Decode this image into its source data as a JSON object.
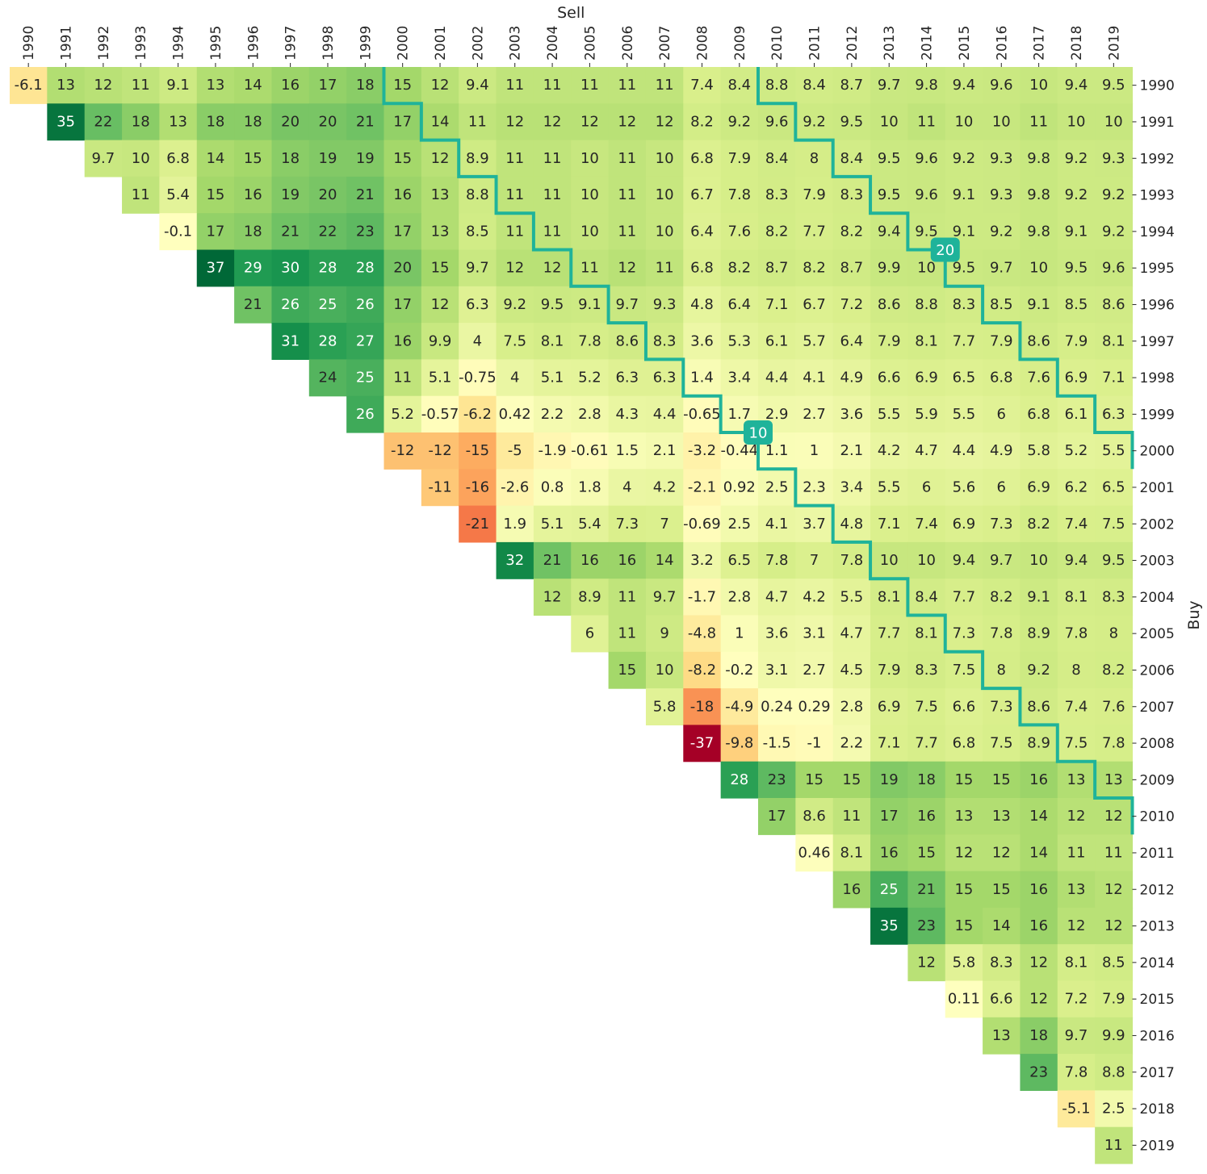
{
  "chart_data": {
    "type": "heatmap",
    "xlabel": "Sell",
    "ylabel": "Buy",
    "x_categories": [
      "1990",
      "1991",
      "1992",
      "1993",
      "1994",
      "1995",
      "1996",
      "1997",
      "1998",
      "1999",
      "2000",
      "2001",
      "2002",
      "2003",
      "2004",
      "2005",
      "2006",
      "2007",
      "2008",
      "2009",
      "2010",
      "2011",
      "2012",
      "2013",
      "2014",
      "2015",
      "2016",
      "2017",
      "2018",
      "2019"
    ],
    "y_categories": [
      "1990",
      "1991",
      "1992",
      "1993",
      "1994",
      "1995",
      "1996",
      "1997",
      "1998",
      "1999",
      "2000",
      "2001",
      "2002",
      "2003",
      "2004",
      "2005",
      "2006",
      "2007",
      "2008",
      "2009",
      "2010",
      "2011",
      "2012",
      "2013",
      "2014",
      "2015",
      "2016",
      "2017",
      "2018",
      "2019"
    ],
    "colorscale": "RdYlGn",
    "value_range": [
      -37,
      37
    ],
    "values": [
      [
        "-6.1",
        "13",
        "12",
        "11",
        "9.1",
        "13",
        "14",
        "16",
        "17",
        "18",
        "15",
        "12",
        "9.4",
        "11",
        "11",
        "11",
        "11",
        "11",
        "7.4",
        "8.4",
        "8.8",
        "8.4",
        "8.7",
        "9.7",
        "9.8",
        "9.4",
        "9.6",
        "10",
        "9.4",
        "9.5"
      ],
      [
        null,
        "35",
        "22",
        "18",
        "13",
        "18",
        "18",
        "20",
        "20",
        "21",
        "17",
        "14",
        "11",
        "12",
        "12",
        "12",
        "12",
        "12",
        "8.2",
        "9.2",
        "9.6",
        "9.2",
        "9.5",
        "10",
        "11",
        "10",
        "10",
        "11",
        "10",
        "10"
      ],
      [
        null,
        null,
        "9.7",
        "10",
        "6.8",
        "14",
        "15",
        "18",
        "19",
        "19",
        "15",
        "12",
        "8.9",
        "11",
        "11",
        "10",
        "11",
        "10",
        "6.8",
        "7.9",
        "8.4",
        "8",
        "8.4",
        "9.5",
        "9.6",
        "9.2",
        "9.3",
        "9.8",
        "9.2",
        "9.3"
      ],
      [
        null,
        null,
        null,
        "11",
        "5.4",
        "15",
        "16",
        "19",
        "20",
        "21",
        "16",
        "13",
        "8.8",
        "11",
        "11",
        "10",
        "11",
        "10",
        "6.7",
        "7.8",
        "8.3",
        "7.9",
        "8.3",
        "9.5",
        "9.6",
        "9.1",
        "9.3",
        "9.8",
        "9.2",
        "9.2"
      ],
      [
        null,
        null,
        null,
        null,
        "-0.1",
        "17",
        "18",
        "21",
        "22",
        "23",
        "17",
        "13",
        "8.5",
        "11",
        "11",
        "10",
        "11",
        "10",
        "6.4",
        "7.6",
        "8.2",
        "7.7",
        "8.2",
        "9.4",
        "9.5",
        "9.1",
        "9.2",
        "9.8",
        "9.1",
        "9.2"
      ],
      [
        null,
        null,
        null,
        null,
        null,
        "37",
        "29",
        "30",
        "28",
        "28",
        "20",
        "15",
        "9.7",
        "12",
        "12",
        "11",
        "12",
        "11",
        "6.8",
        "8.2",
        "8.7",
        "8.2",
        "8.7",
        "9.9",
        "10",
        "9.5",
        "9.7",
        "10",
        "9.5",
        "9.6"
      ],
      [
        null,
        null,
        null,
        null,
        null,
        null,
        "21",
        "26",
        "25",
        "26",
        "17",
        "12",
        "6.3",
        "9.2",
        "9.5",
        "9.1",
        "9.7",
        "9.3",
        "4.8",
        "6.4",
        "7.1",
        "6.7",
        "7.2",
        "8.6",
        "8.8",
        "8.3",
        "8.5",
        "9.1",
        "8.5",
        "8.6"
      ],
      [
        null,
        null,
        null,
        null,
        null,
        null,
        null,
        "31",
        "28",
        "27",
        "16",
        "9.9",
        "4",
        "7.5",
        "8.1",
        "7.8",
        "8.6",
        "8.3",
        "3.6",
        "5.3",
        "6.1",
        "5.7",
        "6.4",
        "7.9",
        "8.1",
        "7.7",
        "7.9",
        "8.6",
        "7.9",
        "8.1"
      ],
      [
        null,
        null,
        null,
        null,
        null,
        null,
        null,
        null,
        "24",
        "25",
        "11",
        "5.1",
        "-0.75",
        "4",
        "5.1",
        "5.2",
        "6.3",
        "6.3",
        "1.4",
        "3.4",
        "4.4",
        "4.1",
        "4.9",
        "6.6",
        "6.9",
        "6.5",
        "6.8",
        "7.6",
        "6.9",
        "7.1"
      ],
      [
        null,
        null,
        null,
        null,
        null,
        null,
        null,
        null,
        null,
        "26",
        "5.2",
        "-0.57",
        "-6.2",
        "0.42",
        "2.2",
        "2.8",
        "4.3",
        "4.4",
        "-0.65",
        "1.7",
        "2.9",
        "2.7",
        "3.6",
        "5.5",
        "5.9",
        "5.5",
        "6",
        "6.8",
        "6.1",
        "6.3"
      ],
      [
        null,
        null,
        null,
        null,
        null,
        null,
        null,
        null,
        null,
        null,
        "-12",
        "-12",
        "-15",
        "-5",
        "-1.9",
        "-0.61",
        "1.5",
        "2.1",
        "-3.2",
        "-0.44",
        "1.1",
        "1",
        "2.1",
        "4.2",
        "4.7",
        "4.4",
        "4.9",
        "5.8",
        "5.2",
        "5.5"
      ],
      [
        null,
        null,
        null,
        null,
        null,
        null,
        null,
        null,
        null,
        null,
        null,
        "-11",
        "-16",
        "-2.6",
        "0.8",
        "1.8",
        "4",
        "4.2",
        "-2.1",
        "0.92",
        "2.5",
        "2.3",
        "3.4",
        "5.5",
        "6",
        "5.6",
        "6",
        "6.9",
        "6.2",
        "6.5"
      ],
      [
        null,
        null,
        null,
        null,
        null,
        null,
        null,
        null,
        null,
        null,
        null,
        null,
        "-21",
        "1.9",
        "5.1",
        "5.4",
        "7.3",
        "7",
        "-0.69",
        "2.5",
        "4.1",
        "3.7",
        "4.8",
        "7.1",
        "7.4",
        "6.9",
        "7.3",
        "8.2",
        "7.4",
        "7.5"
      ],
      [
        null,
        null,
        null,
        null,
        null,
        null,
        null,
        null,
        null,
        null,
        null,
        null,
        null,
        "32",
        "21",
        "16",
        "16",
        "14",
        "3.2",
        "6.5",
        "7.8",
        "7",
        "7.8",
        "10",
        "10",
        "9.4",
        "9.7",
        "10",
        "9.4",
        "9.5"
      ],
      [
        null,
        null,
        null,
        null,
        null,
        null,
        null,
        null,
        null,
        null,
        null,
        null,
        null,
        null,
        "12",
        "8.9",
        "11",
        "9.7",
        "-1.7",
        "2.8",
        "4.7",
        "4.2",
        "5.5",
        "8.1",
        "8.4",
        "7.7",
        "8.2",
        "9.1",
        "8.1",
        "8.3"
      ],
      [
        null,
        null,
        null,
        null,
        null,
        null,
        null,
        null,
        null,
        null,
        null,
        null,
        null,
        null,
        null,
        "6",
        "11",
        "9",
        "-4.8",
        "1",
        "3.6",
        "3.1",
        "4.7",
        "7.7",
        "8.1",
        "7.3",
        "7.8",
        "8.9",
        "7.8",
        "8"
      ],
      [
        null,
        null,
        null,
        null,
        null,
        null,
        null,
        null,
        null,
        null,
        null,
        null,
        null,
        null,
        null,
        null,
        "15",
        "10",
        "-8.2",
        "-0.2",
        "3.1",
        "2.7",
        "4.5",
        "7.9",
        "8.3",
        "7.5",
        "8",
        "9.2",
        "8",
        "8.2"
      ],
      [
        null,
        null,
        null,
        null,
        null,
        null,
        null,
        null,
        null,
        null,
        null,
        null,
        null,
        null,
        null,
        null,
        null,
        "5.8",
        "-18",
        "-4.9",
        "0.24",
        "0.29",
        "2.8",
        "6.9",
        "7.5",
        "6.6",
        "7.3",
        "8.6",
        "7.4",
        "7.6"
      ],
      [
        null,
        null,
        null,
        null,
        null,
        null,
        null,
        null,
        null,
        null,
        null,
        null,
        null,
        null,
        null,
        null,
        null,
        null,
        "-37",
        "-9.8",
        "-1.5",
        "-1",
        "2.2",
        "7.1",
        "7.7",
        "6.8",
        "7.5",
        "8.9",
        "7.5",
        "7.8"
      ],
      [
        null,
        null,
        null,
        null,
        null,
        null,
        null,
        null,
        null,
        null,
        null,
        null,
        null,
        null,
        null,
        null,
        null,
        null,
        null,
        "28",
        "23",
        "15",
        "15",
        "19",
        "18",
        "15",
        "15",
        "16",
        "13",
        "13"
      ],
      [
        null,
        null,
        null,
        null,
        null,
        null,
        null,
        null,
        null,
        null,
        null,
        null,
        null,
        null,
        null,
        null,
        null,
        null,
        null,
        null,
        "17",
        "8.6",
        "11",
        "17",
        "16",
        "13",
        "13",
        "14",
        "12",
        "12"
      ],
      [
        null,
        null,
        null,
        null,
        null,
        null,
        null,
        null,
        null,
        null,
        null,
        null,
        null,
        null,
        null,
        null,
        null,
        null,
        null,
        null,
        null,
        "0.46",
        "8.1",
        "16",
        "15",
        "12",
        "12",
        "14",
        "11",
        "11"
      ],
      [
        null,
        null,
        null,
        null,
        null,
        null,
        null,
        null,
        null,
        null,
        null,
        null,
        null,
        null,
        null,
        null,
        null,
        null,
        null,
        null,
        null,
        null,
        "16",
        "25",
        "21",
        "15",
        "15",
        "16",
        "13",
        "12"
      ],
      [
        null,
        null,
        null,
        null,
        null,
        null,
        null,
        null,
        null,
        null,
        null,
        null,
        null,
        null,
        null,
        null,
        null,
        null,
        null,
        null,
        null,
        null,
        null,
        "35",
        "23",
        "15",
        "14",
        "16",
        "12",
        "12"
      ],
      [
        null,
        null,
        null,
        null,
        null,
        null,
        null,
        null,
        null,
        null,
        null,
        null,
        null,
        null,
        null,
        null,
        null,
        null,
        null,
        null,
        null,
        null,
        null,
        null,
        "12",
        "5.8",
        "8.3",
        "12",
        "8.1",
        "8.5"
      ],
      [
        null,
        null,
        null,
        null,
        null,
        null,
        null,
        null,
        null,
        null,
        null,
        null,
        null,
        null,
        null,
        null,
        null,
        null,
        null,
        null,
        null,
        null,
        null,
        null,
        null,
        "0.11",
        "6.6",
        "12",
        "7.2",
        "7.9"
      ],
      [
        null,
        null,
        null,
        null,
        null,
        null,
        null,
        null,
        null,
        null,
        null,
        null,
        null,
        null,
        null,
        null,
        null,
        null,
        null,
        null,
        null,
        null,
        null,
        null,
        null,
        null,
        "13",
        "18",
        "9.7",
        "9.9"
      ],
      [
        null,
        null,
        null,
        null,
        null,
        null,
        null,
        null,
        null,
        null,
        null,
        null,
        null,
        null,
        null,
        null,
        null,
        null,
        null,
        null,
        null,
        null,
        null,
        null,
        null,
        null,
        null,
        "23",
        "7.8",
        "8.8"
      ],
      [
        null,
        null,
        null,
        null,
        null,
        null,
        null,
        null,
        null,
        null,
        null,
        null,
        null,
        null,
        null,
        null,
        null,
        null,
        null,
        null,
        null,
        null,
        null,
        null,
        null,
        null,
        null,
        null,
        "-5.1",
        "2.5"
      ],
      [
        null,
        null,
        null,
        null,
        null,
        null,
        null,
        null,
        null,
        null,
        null,
        null,
        null,
        null,
        null,
        null,
        null,
        null,
        null,
        null,
        null,
        null,
        null,
        null,
        null,
        null,
        null,
        null,
        null,
        "11"
      ]
    ],
    "contours": [
      {
        "label": "10",
        "holding_years": 10
      },
      {
        "label": "20",
        "holding_years": 20
      }
    ],
    "contour_color": "#1fb39a"
  }
}
